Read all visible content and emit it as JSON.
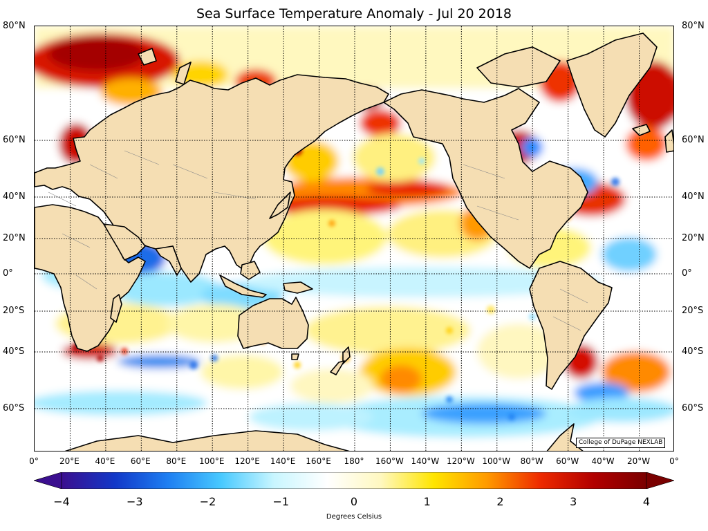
{
  "title": "Sea Surface Temperature Anomaly - Jul 20 2018",
  "credit": "College of DuPage NEXLAB",
  "lat_labels": [
    "80°N",
    "60°N",
    "40°N",
    "20°N",
    "0°",
    "20°S",
    "40°S",
    "60°S"
  ],
  "lon_labels": [
    "0°",
    "20°E",
    "40°E",
    "60°E",
    "80°E",
    "100°E",
    "120°E",
    "140°E",
    "160°E",
    "180°",
    "160°W",
    "140°W",
    "120°W",
    "100°W",
    "80°W",
    "60°W",
    "40°W",
    "20°W",
    "0°"
  ],
  "colorbar": {
    "label": "Degrees Celsius",
    "ticks": [
      "−4",
      "−3",
      "−2",
      "−1",
      "0",
      "1",
      "2",
      "3",
      "4"
    ],
    "range": [
      -4,
      4
    ],
    "colors": [
      "#3b0f8f",
      "#1238c8",
      "#1e7ff2",
      "#48c9ff",
      "#c9f6ff",
      "#ffffff",
      "#fff8c0",
      "#ffe500",
      "#ff9a00",
      "#ee2a00",
      "#b20000",
      "#7a0000"
    ]
  },
  "colors": {
    "land": "#f5deb3",
    "coast": "#000000",
    "grid": "#000000",
    "border": "#8a8a8a"
  }
}
